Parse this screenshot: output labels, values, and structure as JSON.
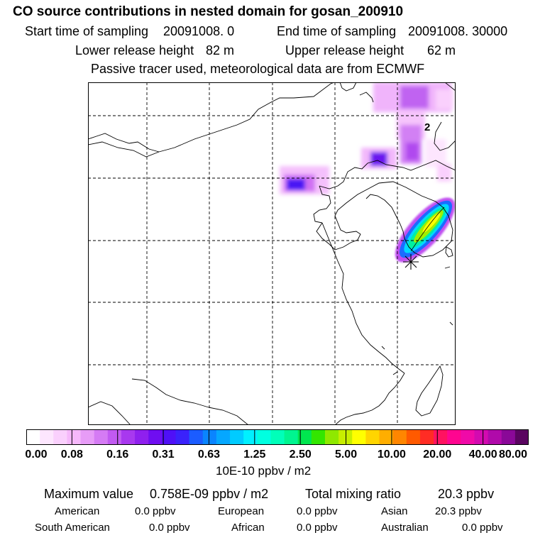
{
  "header": {
    "title": "CO  source contributions in nested domain for gosan_200910",
    "start_label": "Start time of sampling",
    "start_value": "20091008.     0",
    "end_label": "End time of sampling",
    "end_value": "20091008. 30000",
    "lower_label": "Lower release height",
    "lower_value": "82 m",
    "upper_label": "Upper release height",
    "upper_value": "62 m",
    "tracer_note": "Passive tracer used, meteorological data are from ECMWF"
  },
  "map": {
    "contour_label": "2",
    "receptor_marker": "gosan-receptor-star"
  },
  "legend": {
    "colors": [
      "#ffffff",
      "#fde6fe",
      "#fad0fd",
      "#f6b8fb",
      "#e79cf7",
      "#d57bf4",
      "#c15af1",
      "#a838ef",
      "#8f20ee",
      "#6f0ef1",
      "#4f10f7",
      "#3a22fb",
      "#1b5cff",
      "#0a84ff",
      "#05a7ff",
      "#00cbff",
      "#00f0ff",
      "#00ffe0",
      "#00ffb9",
      "#00f590",
      "#00e64f",
      "#33e600",
      "#8fe800",
      "#c8ee00",
      "#ffff00",
      "#ffd500",
      "#ffae00",
      "#ff8600",
      "#ff5a00",
      "#ff2c24",
      "#ff1260",
      "#ff0590",
      "#f00aa8",
      "#d30ab0",
      "#b00aaa",
      "#8a0898",
      "#5a0460"
    ],
    "ticks": [
      "0.00",
      "0.08",
      "0.16",
      "0.31",
      "0.63",
      "1.25",
      "2.50",
      "5.00",
      "10.00",
      "20.00",
      "40.00",
      "80.00"
    ],
    "unit": "10E-10 ppbv / m2"
  },
  "stats": {
    "max_label": "Maximum value",
    "max_value": "0.758E-09 ppbv / m2",
    "total_label": "Total mixing ratio",
    "total_value": "20.3 ppbv"
  },
  "regions": [
    {
      "name": "American",
      "value": "0.0 ppbv"
    },
    {
      "name": "European",
      "value": "0.0 ppbv"
    },
    {
      "name": "Asian",
      "value": "20.3 ppbv"
    },
    {
      "name": "South American",
      "value": "0.0 ppbv"
    },
    {
      "name": "African",
      "value": "0.0 ppbv"
    },
    {
      "name": "Australian",
      "value": "0.0 ppbv"
    }
  ]
}
